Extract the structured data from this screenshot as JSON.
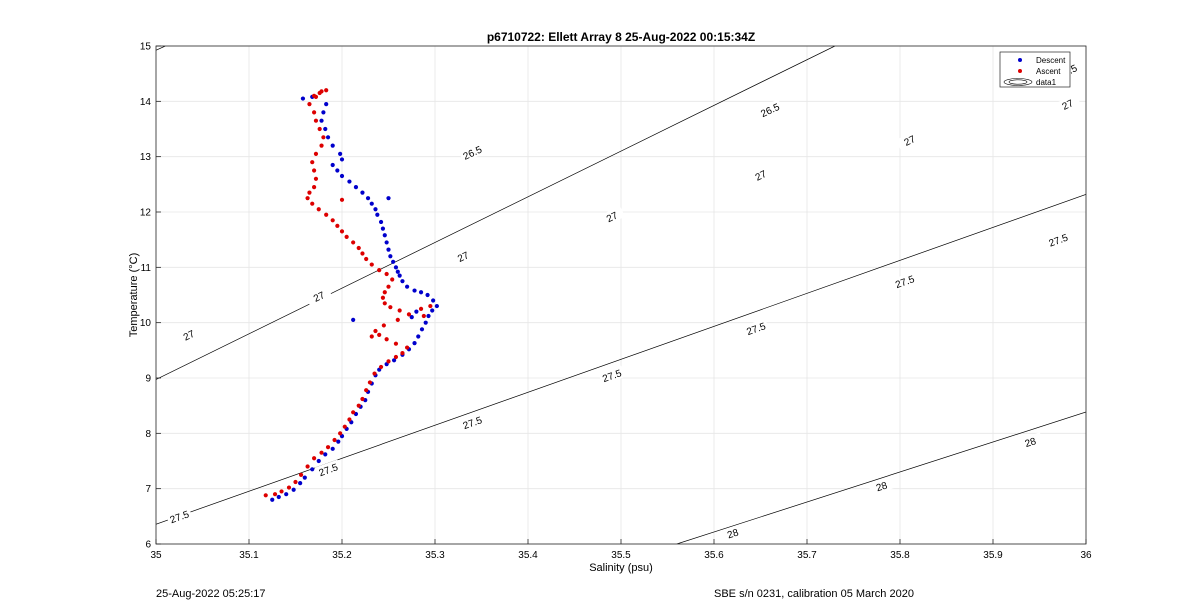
{
  "footer": {
    "timestamp": "25-Aug-2022 05:25:17",
    "instrument": "SBE s/n 0231, calibration 05 March 2020"
  },
  "chart_data": {
    "type": "scatter",
    "title": "p6710722: Ellett Array 8 25-Aug-2022 00:15:34Z",
    "xlabel": "Salinity (psu)",
    "ylabel": "Temperature (°C)",
    "xlim": [
      35,
      36
    ],
    "ylim": [
      6,
      15
    ],
    "xticks": [
      "35",
      "35.1",
      "35.2",
      "35.3",
      "35.4",
      "35.5",
      "35.6",
      "35.7",
      "35.8",
      "35.9",
      "36"
    ],
    "yticks": [
      "6",
      "7",
      "8",
      "9",
      "10",
      "11",
      "12",
      "13",
      "14",
      "15"
    ],
    "grid": true,
    "legend": {
      "position": "top-right",
      "entries": [
        {
          "label": "Descent",
          "color": "#0000cc",
          "marker": "dot"
        },
        {
          "label": "Ascent",
          "color": "#dd0000",
          "marker": "dot"
        },
        {
          "label": "data1",
          "color": "#000000",
          "marker": "contour"
        }
      ]
    },
    "contours": [
      {
        "level": "26.5",
        "s_at_t6": 33.85,
        "s_at_t15": 35.01,
        "labels": [
          {
            "s": 35.34,
            "t": 13.08
          },
          {
            "s": 35.66,
            "t": 13.85
          },
          {
            "s": 35.98,
            "t": 14.55
          },
          {
            "s": 36.32,
            "t": 15.15
          }
        ]
      },
      {
        "level": "27",
        "s_at_t6": 34.64,
        "s_at_t15": 35.73,
        "labels": [
          {
            "s": 35.035,
            "t": 9.78
          },
          {
            "s": 35.175,
            "t": 10.48
          },
          {
            "s": 35.33,
            "t": 11.2
          },
          {
            "s": 35.49,
            "t": 11.92
          },
          {
            "s": 35.65,
            "t": 12.67
          },
          {
            "s": 35.81,
            "t": 13.3
          },
          {
            "s": 35.98,
            "t": 13.95
          }
        ]
      },
      {
        "level": "27.5",
        "s_at_t6": 34.94,
        "s_at_t15": 36.45,
        "labels": [
          {
            "s": 35.025,
            "t": 6.5
          },
          {
            "s": 35.185,
            "t": 7.35
          },
          {
            "s": 35.34,
            "t": 8.2
          },
          {
            "s": 35.49,
            "t": 9.05
          },
          {
            "s": 35.645,
            "t": 9.9
          },
          {
            "s": 35.805,
            "t": 10.75
          },
          {
            "s": 35.97,
            "t": 11.5
          }
        ]
      },
      {
        "level": "28",
        "s_at_t6": 35.56,
        "s_at_t15": 37.22,
        "labels": [
          {
            "s": 35.62,
            "t": 6.2
          },
          {
            "s": 35.78,
            "t": 7.05
          },
          {
            "s": 35.94,
            "t": 7.85
          }
        ]
      }
    ],
    "series": [
      {
        "name": "Descent",
        "color": "#0000cc",
        "points": [
          [
            35.125,
            6.8
          ],
          [
            35.132,
            6.85
          ],
          [
            35.14,
            6.9
          ],
          [
            35.148,
            6.98
          ],
          [
            35.155,
            7.1
          ],
          [
            35.16,
            7.2
          ],
          [
            35.168,
            7.35
          ],
          [
            35.175,
            7.5
          ],
          [
            35.182,
            7.62
          ],
          [
            35.19,
            7.72
          ],
          [
            35.196,
            7.85
          ],
          [
            35.2,
            7.95
          ],
          [
            35.205,
            8.08
          ],
          [
            35.21,
            8.2
          ],
          [
            35.215,
            8.35
          ],
          [
            35.22,
            8.48
          ],
          [
            35.225,
            8.6
          ],
          [
            35.228,
            8.75
          ],
          [
            35.232,
            8.9
          ],
          [
            35.236,
            9.05
          ],
          [
            35.24,
            9.15
          ],
          [
            35.248,
            9.25
          ],
          [
            35.256,
            9.32
          ],
          [
            35.265,
            9.42
          ],
          [
            35.272,
            9.52
          ],
          [
            35.278,
            9.63
          ],
          [
            35.282,
            9.75
          ],
          [
            35.286,
            9.88
          ],
          [
            35.29,
            10.0
          ],
          [
            35.293,
            10.12
          ],
          [
            35.297,
            10.22
          ],
          [
            35.302,
            10.3
          ],
          [
            35.298,
            10.4
          ],
          [
            35.292,
            10.5
          ],
          [
            35.285,
            10.55
          ],
          [
            35.278,
            10.58
          ],
          [
            35.27,
            10.65
          ],
          [
            35.265,
            10.75
          ],
          [
            35.262,
            10.85
          ],
          [
            35.26,
            10.92
          ],
          [
            35.258,
            11.0
          ],
          [
            35.255,
            11.1
          ],
          [
            35.252,
            11.2
          ],
          [
            35.25,
            11.32
          ],
          [
            35.248,
            11.45
          ],
          [
            35.246,
            11.58
          ],
          [
            35.244,
            11.7
          ],
          [
            35.242,
            11.82
          ],
          [
            35.238,
            11.95
          ],
          [
            35.236,
            12.05
          ],
          [
            35.232,
            12.15
          ],
          [
            35.228,
            12.25
          ],
          [
            35.222,
            12.35
          ],
          [
            35.215,
            12.45
          ],
          [
            35.208,
            12.55
          ],
          [
            35.2,
            12.65
          ],
          [
            35.195,
            12.75
          ],
          [
            35.19,
            12.85
          ],
          [
            35.2,
            12.95
          ],
          [
            35.198,
            13.05
          ],
          [
            35.19,
            13.2
          ],
          [
            35.185,
            13.35
          ],
          [
            35.182,
            13.5
          ],
          [
            35.178,
            13.65
          ],
          [
            35.18,
            13.8
          ],
          [
            35.183,
            13.95
          ],
          [
            35.158,
            14.05
          ],
          [
            35.168,
            14.08
          ],
          [
            35.25,
            12.25
          ],
          [
            35.212,
            10.05
          ],
          [
            35.275,
            10.1
          ],
          [
            35.28,
            10.2
          ]
        ]
      },
      {
        "name": "Ascent",
        "color": "#dd0000",
        "points": [
          [
            35.118,
            6.88
          ],
          [
            35.128,
            6.9
          ],
          [
            35.135,
            6.95
          ],
          [
            35.143,
            7.02
          ],
          [
            35.15,
            7.12
          ],
          [
            35.156,
            7.25
          ],
          [
            35.163,
            7.4
          ],
          [
            35.17,
            7.55
          ],
          [
            35.178,
            7.65
          ],
          [
            35.185,
            7.75
          ],
          [
            35.192,
            7.88
          ],
          [
            35.198,
            8.0
          ],
          [
            35.203,
            8.12
          ],
          [
            35.208,
            8.25
          ],
          [
            35.212,
            8.38
          ],
          [
            35.218,
            8.5
          ],
          [
            35.222,
            8.62
          ],
          [
            35.226,
            8.78
          ],
          [
            35.23,
            8.92
          ],
          [
            35.235,
            9.08
          ],
          [
            35.242,
            9.2
          ],
          [
            35.25,
            9.3
          ],
          [
            35.258,
            9.38
          ],
          [
            35.265,
            9.45
          ],
          [
            35.27,
            9.55
          ],
          [
            35.258,
            9.62
          ],
          [
            35.248,
            9.7
          ],
          [
            35.24,
            9.78
          ],
          [
            35.236,
            9.85
          ],
          [
            35.245,
            9.95
          ],
          [
            35.26,
            10.05
          ],
          [
            35.272,
            10.15
          ],
          [
            35.262,
            10.22
          ],
          [
            35.252,
            10.28
          ],
          [
            35.246,
            10.35
          ],
          [
            35.244,
            10.45
          ],
          [
            35.246,
            10.55
          ],
          [
            35.25,
            10.65
          ],
          [
            35.254,
            10.78
          ],
          [
            35.248,
            10.88
          ],
          [
            35.24,
            10.95
          ],
          [
            35.232,
            11.05
          ],
          [
            35.226,
            11.15
          ],
          [
            35.222,
            11.25
          ],
          [
            35.218,
            11.35
          ],
          [
            35.212,
            11.45
          ],
          [
            35.205,
            11.55
          ],
          [
            35.2,
            11.65
          ],
          [
            35.195,
            11.75
          ],
          [
            35.19,
            11.85
          ],
          [
            35.183,
            11.95
          ],
          [
            35.175,
            12.05
          ],
          [
            35.168,
            12.15
          ],
          [
            35.163,
            12.25
          ],
          [
            35.165,
            12.35
          ],
          [
            35.17,
            12.45
          ],
          [
            35.172,
            12.6
          ],
          [
            35.17,
            12.75
          ],
          [
            35.168,
            12.9
          ],
          [
            35.172,
            13.05
          ],
          [
            35.178,
            13.2
          ],
          [
            35.18,
            13.35
          ],
          [
            35.176,
            13.5
          ],
          [
            35.172,
            13.65
          ],
          [
            35.17,
            13.8
          ],
          [
            35.165,
            13.95
          ],
          [
            35.17,
            14.1
          ],
          [
            35.178,
            14.18
          ],
          [
            35.183,
            14.2
          ],
          [
            35.176,
            14.15
          ],
          [
            35.172,
            14.08
          ],
          [
            35.285,
            10.25
          ],
          [
            35.295,
            10.3
          ],
          [
            35.288,
            10.12
          ],
          [
            35.2,
            12.22
          ],
          [
            35.232,
            9.75
          ]
        ]
      }
    ]
  }
}
